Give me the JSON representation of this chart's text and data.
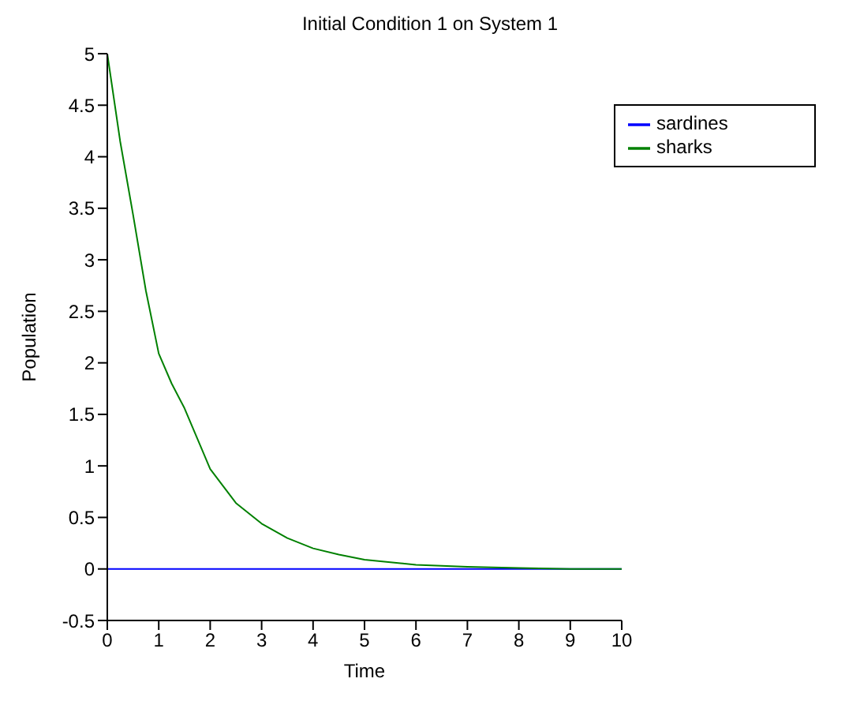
{
  "chart_data": {
    "type": "line",
    "title": "Initial Condition 1 on System 1",
    "xlabel": "Time",
    "ylabel": "Population",
    "xlim": [
      0,
      10
    ],
    "xticks": [
      0,
      1,
      2,
      3,
      4,
      5,
      6,
      7,
      8,
      9,
      10
    ],
    "ylim": [
      -0.5,
      5
    ],
    "yticks": [
      -0.5,
      0,
      0.5,
      1,
      1.5,
      2,
      2.5,
      3,
      3.5,
      4,
      4.5,
      5
    ],
    "grid": false,
    "legend": "top right",
    "marker": "none",
    "line_style": "solid",
    "series": [
      {
        "name": "sardines",
        "color": "#0000ff",
        "x": [
          0,
          1,
          2,
          3,
          4,
          5,
          6,
          7,
          8,
          9,
          10
        ],
        "values": [
          0,
          0,
          0,
          0,
          0,
          0,
          0,
          0,
          0,
          0,
          0
        ]
      },
      {
        "name": "sharks",
        "color": "#008000",
        "x": [
          0,
          0.25,
          0.5,
          0.75,
          1,
          1.25,
          1.5,
          2,
          2.5,
          3,
          3.5,
          4,
          4.5,
          5,
          6,
          7,
          8,
          9,
          10
        ],
        "values": [
          5,
          4.15,
          3.44,
          2.7,
          2.09,
          1.8,
          1.56,
          0.97,
          0.64,
          0.44,
          0.3,
          0.2,
          0.14,
          0.09,
          0.04,
          0.02,
          0.01,
          0,
          0
        ]
      }
    ]
  }
}
